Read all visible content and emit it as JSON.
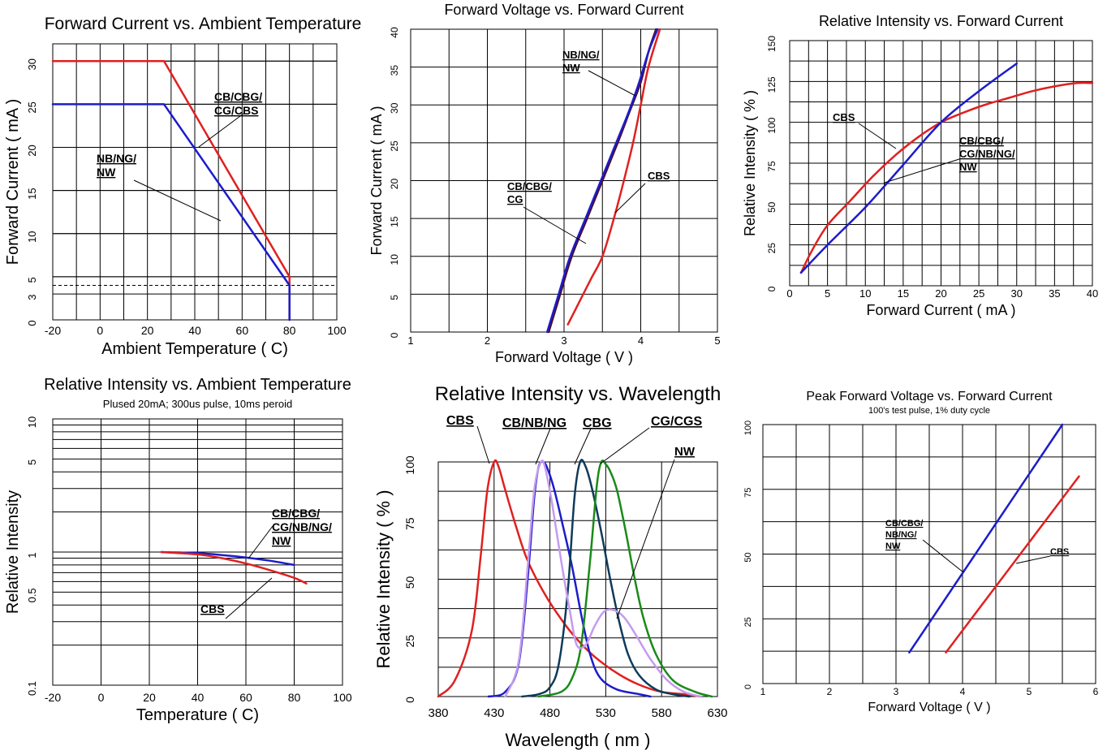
{
  "chart_data": [
    {
      "type": "line",
      "title": "Forward Current vs. Ambient Temperature",
      "xlabel": "Ambient Temperature ( C)",
      "ylabel": "Forward Current ( mA )",
      "xlim": [
        -20,
        100
      ],
      "ylim": [
        0,
        32
      ],
      "x_ticks": [
        "-20",
        "0",
        "20",
        "40",
        "60",
        "80",
        "100"
      ],
      "y_ticks": [
        "0",
        "3",
        "5",
        "10",
        "15",
        "20",
        "25",
        "30"
      ],
      "grid": true,
      "reference_line": {
        "y": 4,
        "style": "dashed"
      },
      "series": [
        {
          "name": "CB/CBG/ CG/CBS",
          "color": "#e02020",
          "x": [
            -20,
            27,
            80,
            80
          ],
          "y": [
            30,
            30,
            5,
            0
          ]
        },
        {
          "name": "NB/NG/ NW",
          "color": "#1c1ccc",
          "x": [
            -20,
            27,
            80,
            80
          ],
          "y": [
            25,
            25,
            4,
            0
          ]
        }
      ],
      "annotations": [
        {
          "lines": [
            "CB/CBG/",
            "CG/CBS"
          ]
        },
        {
          "lines": [
            "NB/NG/",
            "NW"
          ]
        }
      ]
    },
    {
      "type": "line",
      "title": "Forward Voltage vs. Forward Current",
      "xlabel": "Forward Voltage ( V )",
      "ylabel": "Forward Current ( mA )",
      "xlim": [
        1,
        5
      ],
      "ylim": [
        0,
        40
      ],
      "x_ticks": [
        "1",
        "2",
        "3",
        "4",
        "5"
      ],
      "y_ticks": [
        "0",
        "5",
        "10",
        "15",
        "20",
        "25",
        "30",
        "35",
        "40"
      ],
      "grid": true,
      "series": [
        {
          "name": "NB/NG/ NW",
          "color": "#4a0f2e",
          "x": [
            2.8,
            2.95,
            3.1,
            3.3,
            3.5,
            3.7,
            3.85,
            4.0,
            4.1,
            4.2
          ],
          "y": [
            0,
            5,
            10,
            15,
            20,
            25,
            29,
            33,
            37,
            40
          ]
        },
        {
          "name": "CB/CBG/ CG",
          "color": "#1c1ccc",
          "x": [
            2.78,
            2.93,
            3.08,
            3.28,
            3.48,
            3.68,
            3.84,
            3.98,
            4.1,
            4.22
          ],
          "y": [
            0,
            5,
            10,
            15,
            20,
            25,
            29,
            33,
            37,
            40
          ]
        },
        {
          "name": "CBS",
          "color": "#e02020",
          "x": [
            3.05,
            3.2,
            3.35,
            3.5,
            3.65,
            3.78,
            3.9,
            4.0,
            4.1,
            4.25
          ],
          "y": [
            1,
            4,
            7,
            10,
            15,
            20,
            25,
            30,
            35,
            40
          ]
        }
      ],
      "annotations": [
        {
          "lines": [
            "NB/NG/",
            "NW"
          ]
        },
        {
          "lines": [
            "CB/CBG/",
            "CG"
          ]
        },
        {
          "lines": [
            "CBS"
          ]
        }
      ]
    },
    {
      "type": "line",
      "title": "Relative Intensity vs. Forward Current",
      "xlabel": "Forward Current ( mA )",
      "ylabel": "Relative Intensity ( % )",
      "xlim": [
        0,
        40
      ],
      "ylim": [
        0,
        150
      ],
      "x_ticks": [
        "0",
        "5",
        "10",
        "15",
        "20",
        "25",
        "30",
        "35",
        "40"
      ],
      "y_ticks": [
        "0",
        "25",
        "50",
        "75",
        "100",
        "125",
        "150"
      ],
      "grid": true,
      "series": [
        {
          "name": "CBS",
          "color": "#e02020",
          "x": [
            1.5,
            3,
            5,
            8,
            11,
            14,
            17,
            20,
            23,
            26,
            29,
            32,
            35,
            38,
            40
          ],
          "y": [
            8,
            22,
            37,
            52,
            67,
            80,
            91,
            100,
            106,
            111,
            115,
            119,
            122,
            124,
            124
          ]
        },
        {
          "name": "CB/CBG/ CG/NB/NG/ NW",
          "color": "#1c1ccc",
          "x": [
            1.5,
            5,
            10,
            15,
            20,
            25,
            30
          ],
          "y": [
            8,
            25,
            48,
            74,
            100,
            119,
            136
          ]
        }
      ],
      "annotations": [
        {
          "lines": [
            "CBS"
          ]
        },
        {
          "lines": [
            "CB/CBG/",
            "CG/NB/NG/",
            "NW"
          ]
        }
      ]
    },
    {
      "type": "line",
      "title": "Relative Intensity vs. Ambient Temperature",
      "subtitle": "Plused 20mA; 300us pulse, 10ms peroid",
      "xlabel": "Temperature ( C)",
      "ylabel": "Relative Intensity",
      "xlim": [
        -20,
        100
      ],
      "ylim": [
        0.1,
        10
      ],
      "log_y": true,
      "x_ticks": [
        "-20",
        "0",
        "20",
        "40",
        "60",
        "80",
        "100"
      ],
      "y_ticks": [
        "0.1",
        "0.5",
        "1",
        "5",
        "10"
      ],
      "grid": true,
      "series": [
        {
          "name": "CB/CBG/ CG/NB/NG/ NW",
          "color": "#1c1ccc",
          "x": [
            25,
            40,
            50,
            60,
            70,
            80
          ],
          "y": [
            1.0,
            0.98,
            0.95,
            0.91,
            0.86,
            0.8
          ]
        },
        {
          "name": "CBS",
          "color": "#e02020",
          "x": [
            25,
            40,
            50,
            60,
            70,
            80,
            85
          ],
          "y": [
            1.0,
            0.96,
            0.9,
            0.82,
            0.73,
            0.64,
            0.58
          ]
        }
      ],
      "annotations": [
        {
          "lines": [
            "CB/CBG/",
            "CG/NB/NG/",
            "NW"
          ]
        },
        {
          "lines": [
            "CBS"
          ]
        }
      ]
    },
    {
      "type": "line",
      "title": "Relative Intensity vs. Wavelength",
      "xlabel": "Wavelength ( nm )",
      "ylabel": "Relative Intensity ( % )",
      "xlim": [
        380,
        630
      ],
      "ylim": [
        0,
        100
      ],
      "x_ticks": [
        "380",
        "430",
        "480",
        "530",
        "580",
        "630"
      ],
      "y_ticks": [
        "0",
        "25",
        "50",
        "75",
        "100"
      ],
      "grid": true,
      "series": [
        {
          "name": "CBS",
          "color": "#e02020",
          "x": [
            380,
            395,
            410,
            418,
            424,
            430,
            434,
            440,
            450,
            460,
            475,
            490,
            505,
            520,
            540,
            560,
            580,
            600,
            615
          ],
          "y": [
            0,
            7,
            28,
            60,
            88,
            100,
            98,
            88,
            72,
            58,
            44,
            33,
            24,
            17,
            10,
            5,
            2,
            1,
            0
          ]
        },
        {
          "name": "CB/NB/NG",
          "color": "#1c1ccc",
          "x": [
            425,
            440,
            452,
            460,
            466,
            470,
            474,
            478,
            484,
            492,
            500,
            508,
            516,
            525,
            540,
            560,
            570
          ],
          "y": [
            0,
            2,
            14,
            50,
            85,
            98,
            100,
            97,
            88,
            72,
            55,
            35,
            18,
            8,
            3,
            1,
            0
          ]
        },
        {
          "name": "CBG",
          "color": "#0f3a5a",
          "x": [
            455,
            470,
            480,
            488,
            496,
            502,
            507,
            512,
            518,
            526,
            534,
            542,
            550,
            560,
            575,
            590,
            605
          ],
          "y": [
            0,
            1,
            4,
            14,
            45,
            85,
            100,
            98,
            88,
            70,
            50,
            32,
            18,
            9,
            3,
            1,
            0
          ]
        },
        {
          "name": "CG/CGS",
          "color": "#1a8a1a",
          "x": [
            470,
            490,
            500,
            508,
            516,
            522,
            526,
            530,
            534,
            540,
            548,
            556,
            564,
            575,
            590,
            610,
            625
          ],
          "y": [
            0,
            2,
            8,
            22,
            58,
            90,
            100,
            99,
            96,
            88,
            70,
            50,
            33,
            18,
            7,
            2,
            0
          ]
        },
        {
          "name": "NW",
          "color": "#c49bef",
          "x": [
            440,
            452,
            460,
            466,
            472,
            476,
            482,
            490,
            498,
            504,
            512,
            520,
            528,
            536,
            546,
            556,
            570,
            585,
            600,
            615
          ],
          "y": [
            0,
            15,
            55,
            88,
            100,
            97,
            82,
            58,
            36,
            22,
            22,
            30,
            36,
            37,
            34,
            27,
            16,
            7,
            2,
            0
          ]
        }
      ],
      "annotations": [
        {
          "lines": [
            "CBS"
          ]
        },
        {
          "lines": [
            "CB/NB/NG"
          ]
        },
        {
          "lines": [
            "CBG"
          ]
        },
        {
          "lines": [
            "CG/CGS"
          ]
        },
        {
          "lines": [
            "NW"
          ]
        }
      ]
    },
    {
      "type": "line",
      "title": "Peak Forward Voltage vs. Forward Current",
      "subtitle": "100's test pulse, 1% duty cycle",
      "xlabel": "Forward Voltage ( V )",
      "ylabel": "",
      "xlim": [
        1,
        6
      ],
      "ylim": [
        0,
        100
      ],
      "x_ticks": [
        "1",
        "2",
        "3",
        "4",
        "5",
        "6"
      ],
      "y_ticks": [
        "0",
        "25",
        "50",
        "75",
        "100"
      ],
      "grid": true,
      "series": [
        {
          "name": "CB/CBG/ NB/NG/ NW",
          "color": "#1c1ccc",
          "x": [
            3.2,
            5.5
          ],
          "y": [
            12,
            100
          ]
        },
        {
          "name": "CBS",
          "color": "#e02020",
          "x": [
            3.75,
            5.75
          ],
          "y": [
            12,
            80
          ]
        }
      ],
      "annotations": [
        {
          "lines": [
            "CB/CBG/",
            "NB/NG/",
            "NW"
          ]
        },
        {
          "lines": [
            "CBS"
          ]
        }
      ]
    }
  ]
}
